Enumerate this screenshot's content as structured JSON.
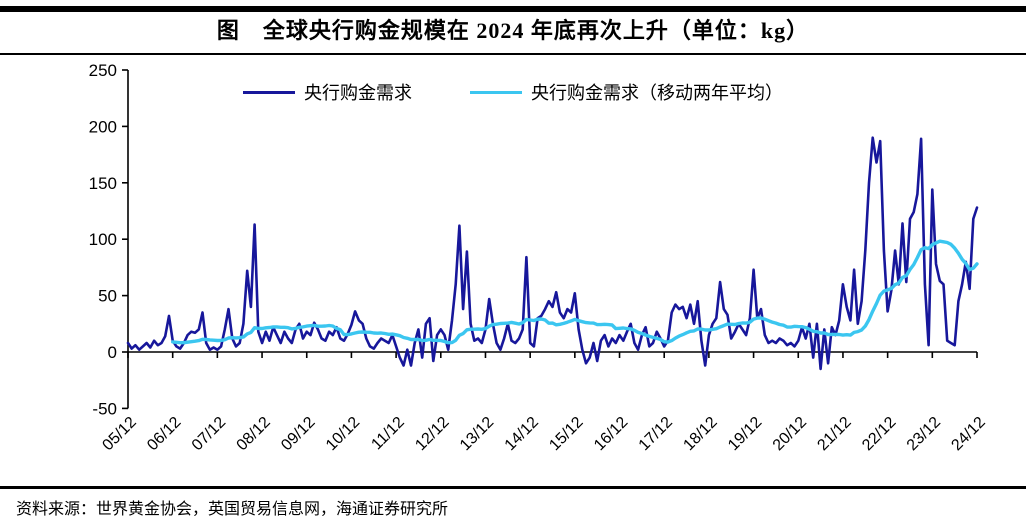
{
  "title": "图　全球央行购金规模在 2024 年底再次上升（单位：kg）",
  "source": "资料来源：世界黄金协会，英国贸易信息网，海通证券研究所",
  "colors": {
    "monthly_line": "#17179b",
    "moving_average_line": "#3bc6f0",
    "axis": "#000000"
  },
  "legend": [
    {
      "label": "央行购金需求",
      "color": "#17179b"
    },
    {
      "label": "央行购金需求（移动两年平均）",
      "color": "#3bc6f0"
    }
  ],
  "chart_data": {
    "type": "line",
    "title": "图　全球央行购金规模在 2024 年底再次上升（单位：kg）",
    "xlabel": "",
    "ylabel": "",
    "unit": "kg",
    "grid": false,
    "legend_position": "top-center",
    "ylim": [
      -50,
      250
    ],
    "y_ticks": [
      -50,
      0,
      50,
      100,
      150,
      200,
      250
    ],
    "x_frequency": "monthly",
    "x_start": "2005-12",
    "x_tick_labels": [
      "05/12",
      "06/12",
      "07/12",
      "08/12",
      "09/12",
      "10/12",
      "11/12",
      "12/12",
      "13/12",
      "14/12",
      "15/12",
      "16/12",
      "17/12",
      "18/12",
      "19/12",
      "20/12",
      "21/12",
      "22/12",
      "23/12",
      "24/12"
    ],
    "x_tick_every_n_points": 12,
    "series": [
      {
        "name": "央行购金需求",
        "color": "#17179b",
        "values": [
          8,
          3,
          6,
          2,
          5,
          8,
          4,
          10,
          6,
          8,
          14,
          32,
          10,
          5,
          3,
          8,
          15,
          18,
          17,
          20,
          35,
          8,
          2,
          4,
          2,
          5,
          20,
          38,
          12,
          5,
          8,
          25,
          72,
          40,
          113,
          18,
          8,
          18,
          10,
          22,
          15,
          8,
          18,
          12,
          8,
          20,
          25,
          12,
          18,
          15,
          26,
          20,
          12,
          10,
          18,
          15,
          22,
          12,
          10,
          16,
          24,
          36,
          28,
          25,
          12,
          5,
          3,
          8,
          12,
          10,
          8,
          15,
          5,
          -5,
          -12,
          2,
          -12,
          8,
          20,
          -5,
          25,
          30,
          -8,
          15,
          20,
          15,
          2,
          28,
          60,
          112,
          38,
          89,
          25,
          10,
          12,
          8,
          20,
          47,
          25,
          8,
          2,
          12,
          25,
          10,
          8,
          12,
          20,
          84,
          8,
          5,
          30,
          32,
          38,
          45,
          40,
          53,
          35,
          30,
          38,
          35,
          52,
          20,
          2,
          -10,
          -5,
          8,
          -8,
          10,
          15,
          5,
          12,
          8,
          15,
          10,
          18,
          25,
          8,
          2,
          15,
          22,
          5,
          8,
          18,
          12,
          5,
          10,
          35,
          42,
          38,
          40,
          30,
          42,
          25,
          45,
          10,
          -12,
          15,
          25,
          30,
          62,
          38,
          33,
          12,
          18,
          25,
          20,
          15,
          30,
          73,
          30,
          38,
          15,
          8,
          10,
          8,
          12,
          10,
          6,
          8,
          5,
          10,
          22,
          12,
          25,
          -5,
          25,
          -15,
          20,
          -10,
          22,
          15,
          28,
          60,
          40,
          28,
          73,
          25,
          45,
          90,
          150,
          190,
          168,
          187,
          90,
          36,
          55,
          90,
          60,
          114,
          62,
          118,
          124,
          140,
          189,
          60,
          6,
          144,
          78,
          63,
          60,
          10,
          8,
          6,
          45,
          60,
          80,
          56,
          118,
          128
        ]
      },
      {
        "name": "央行购金需求（移动两年平均）",
        "color": "#3bc6f0",
        "derived_from_series": 0,
        "derivation": "trailing moving average",
        "window_months": 24,
        "start_index": 12
      }
    ]
  }
}
